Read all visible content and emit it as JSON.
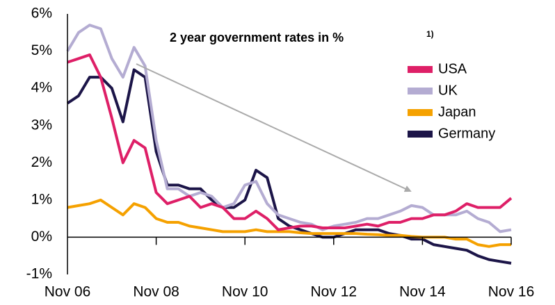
{
  "chart_data": {
    "type": "line",
    "title": "2 year government rates in %",
    "title_footnote": "1)",
    "legend": "upper right",
    "categories": [
      "Nov 06",
      null,
      null,
      null,
      null,
      null,
      null,
      null,
      "Nov 08",
      null,
      null,
      null,
      null,
      null,
      null,
      null,
      "Nov 10",
      null,
      null,
      null,
      null,
      null,
      null,
      null,
      "Nov 12",
      null,
      null,
      null,
      null,
      null,
      null,
      null,
      "Nov 14",
      null,
      null,
      null,
      null,
      null,
      null,
      null,
      "Nov 16"
    ],
    "ylim": [
      -1,
      6
    ],
    "yticks": [
      {
        "value": -1,
        "label": "-1%"
      },
      {
        "value": 0,
        "label": "0%"
      },
      {
        "value": 1,
        "label": "1%"
      },
      {
        "value": 2,
        "label": "2%"
      },
      {
        "value": 3,
        "label": "3%"
      },
      {
        "value": 4,
        "label": "4%"
      },
      {
        "value": 5,
        "label": "5%"
      },
      {
        "value": 6,
        "label": "6%"
      }
    ],
    "series": [
      {
        "name": "USA",
        "color": "#de1f67",
        "values": [
          4.7,
          4.8,
          4.9,
          4.3,
          3.2,
          2.0,
          2.6,
          2.4,
          1.2,
          0.9,
          1.0,
          1.1,
          0.8,
          0.9,
          0.8,
          0.5,
          0.5,
          0.7,
          0.5,
          0.2,
          0.25,
          0.3,
          0.3,
          0.25,
          0.25,
          0.25,
          0.3,
          0.35,
          0.3,
          0.4,
          0.4,
          0.5,
          0.5,
          0.6,
          0.6,
          0.7,
          0.9,
          0.8,
          0.8,
          0.8,
          1.05
        ]
      },
      {
        "name": "UK",
        "color": "#b4acd2",
        "values": [
          5.0,
          5.5,
          5.7,
          5.6,
          4.8,
          4.3,
          5.1,
          4.6,
          2.6,
          1.3,
          1.3,
          1.1,
          1.2,
          1.1,
          0.8,
          0.9,
          1.4,
          1.5,
          0.9,
          0.6,
          0.5,
          0.4,
          0.35,
          0.2,
          0.3,
          0.35,
          0.4,
          0.5,
          0.5,
          0.6,
          0.7,
          0.85,
          0.8,
          0.6,
          0.6,
          0.6,
          0.7,
          0.5,
          0.4,
          0.15,
          0.2
        ]
      },
      {
        "name": "Japan",
        "color": "#f5a100",
        "values": [
          0.8,
          0.85,
          0.9,
          1.0,
          0.8,
          0.6,
          0.9,
          0.8,
          0.5,
          0.4,
          0.4,
          0.3,
          0.25,
          0.2,
          0.15,
          0.15,
          0.15,
          0.2,
          0.15,
          0.15,
          0.15,
          0.12,
          0.1,
          0.1,
          0.1,
          0.1,
          0.1,
          0.08,
          0.07,
          0.05,
          0.05,
          0.02,
          0.0,
          0.0,
          0.0,
          -0.05,
          -0.05,
          -0.2,
          -0.25,
          -0.2,
          -0.2
        ]
      },
      {
        "name": "Germany",
        "color": "#1c1548",
        "values": [
          3.6,
          3.8,
          4.3,
          4.3,
          4.0,
          3.1,
          4.5,
          4.3,
          2.3,
          1.4,
          1.4,
          1.3,
          1.3,
          1.0,
          0.8,
          0.8,
          1.0,
          1.8,
          1.6,
          0.5,
          0.3,
          0.2,
          0.1,
          0.0,
          0.0,
          0.1,
          0.2,
          0.2,
          0.2,
          0.1,
          0.05,
          -0.05,
          -0.05,
          -0.2,
          -0.25,
          -0.3,
          -0.35,
          -0.5,
          -0.6,
          -0.65,
          -0.7
        ]
      }
    ]
  }
}
